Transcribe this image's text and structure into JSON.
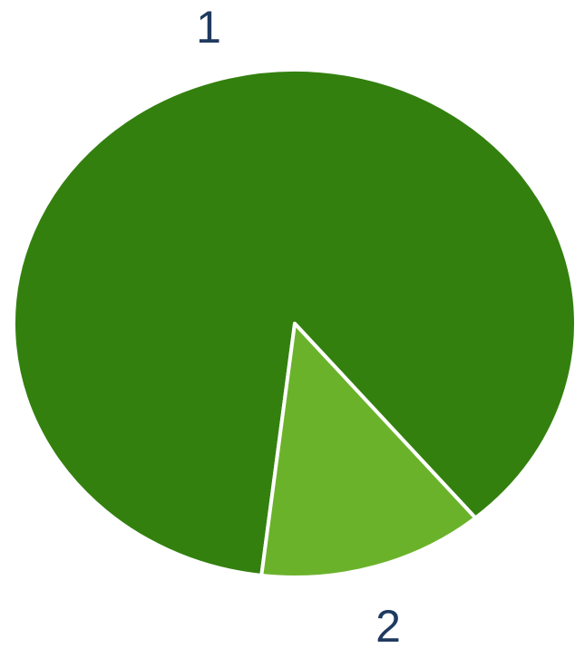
{
  "chart_data": {
    "type": "pie",
    "categories": [
      "1",
      "2"
    ],
    "values": [
      87,
      13
    ],
    "colors": [
      "#33800f",
      "#6bb22b"
    ],
    "legend": "none",
    "labels_outside": true
  }
}
